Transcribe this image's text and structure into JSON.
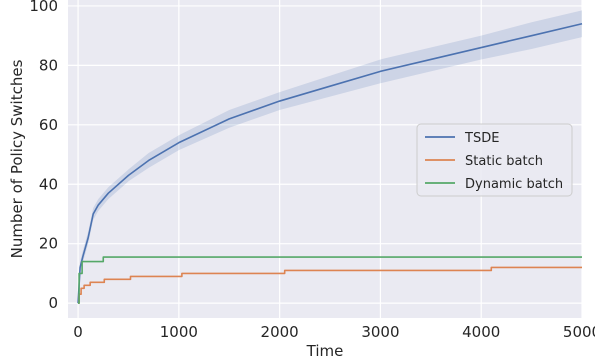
{
  "chart_data": {
    "type": "line",
    "title": "",
    "xlabel": "Time",
    "ylabel": "Number of Policy Switches",
    "xlim": [
      -100,
      5000
    ],
    "ylim": [
      -5,
      102
    ],
    "xticks": [
      0,
      1000,
      2000,
      3000,
      4000,
      5000
    ],
    "yticks": [
      0,
      20,
      40,
      60,
      80,
      100
    ],
    "grid": true,
    "legend_position": "center-right",
    "background": "#eaeaf2",
    "series": [
      {
        "name": "TSDE",
        "color": "#4c72b0",
        "band_color": "#4c72b0",
        "x": [
          0,
          20,
          50,
          100,
          150,
          200,
          300,
          500,
          700,
          1000,
          1500,
          2000,
          2500,
          3000,
          3500,
          4000,
          4500,
          5000
        ],
        "y": [
          0,
          12,
          16,
          22,
          30,
          33,
          37,
          43,
          48,
          54,
          62,
          68,
          73,
          78,
          82,
          86,
          90,
          94
        ],
        "band_lower": [
          0,
          10,
          14,
          20,
          28,
          31,
          35,
          41,
          45.5,
          51.5,
          59,
          65,
          69.5,
          74,
          78,
          82,
          85.5,
          89.5
        ],
        "band_upper": [
          0,
          14,
          18,
          24,
          32,
          35,
          39,
          45,
          50.5,
          56.5,
          65,
          71,
          76.5,
          82,
          86,
          90,
          94.5,
          98.5
        ]
      },
      {
        "name": "Static batch",
        "color": "#dd8452",
        "step": true,
        "x": [
          0,
          10,
          30,
          60,
          120,
          260,
          520,
          1030,
          2050,
          4100,
          5000
        ],
        "y": [
          0,
          3,
          5,
          6,
          7,
          8,
          9,
          10,
          11,
          12,
          12
        ]
      },
      {
        "name": "Dynamic batch",
        "color": "#55a868",
        "step": true,
        "x": [
          0,
          10,
          40,
          250,
          5000
        ],
        "y": [
          0,
          10,
          14,
          15.5,
          15.5
        ]
      }
    ]
  }
}
